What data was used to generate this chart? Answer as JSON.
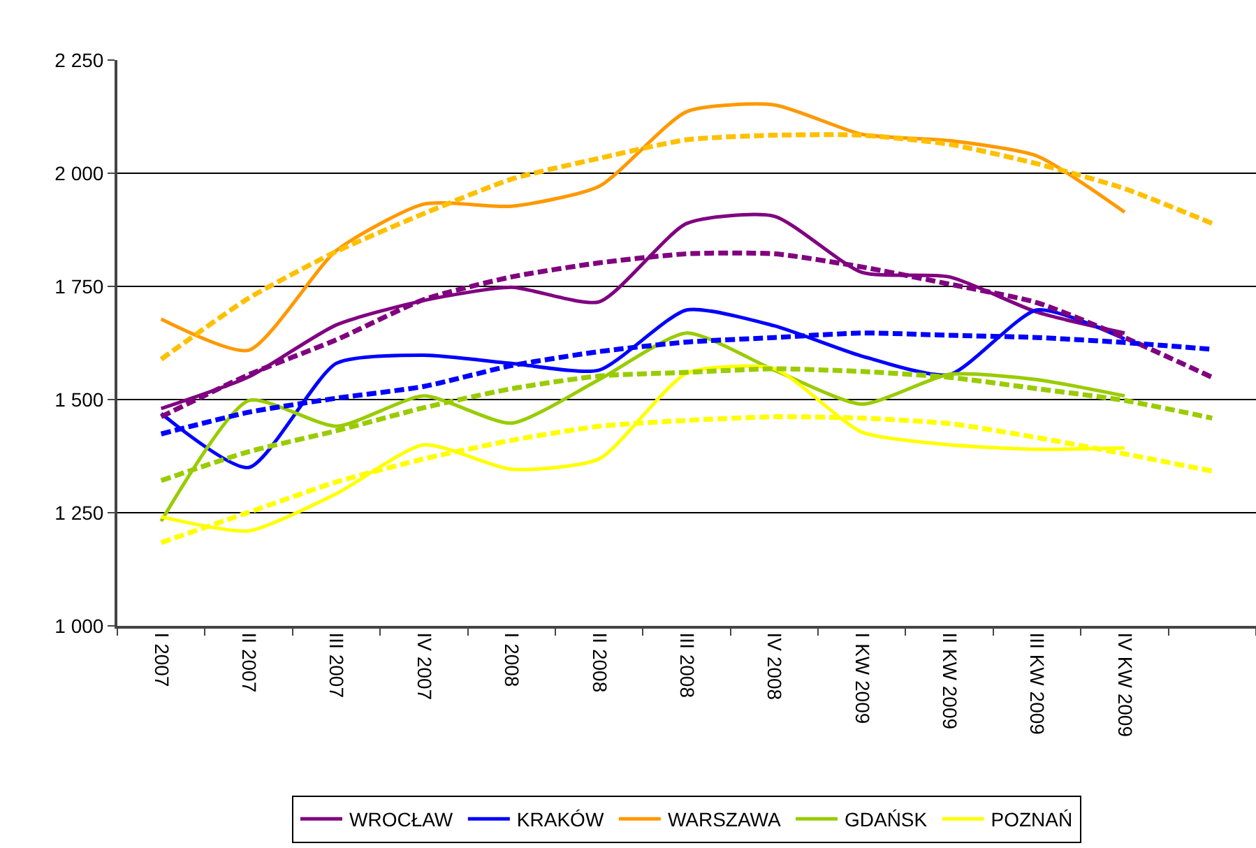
{
  "chart_data": {
    "type": "line",
    "categories": [
      "I 2007",
      "II 2007",
      "III 2007",
      "IV 2007",
      "I 2008",
      "II 2008",
      "III 2008",
      "IV 2008",
      "I KW 2009",
      "II KW 2009",
      "III KW 2009",
      "IV KW 2009",
      null
    ],
    "ylim": [
      1000,
      2250
    ],
    "yticks": [
      {
        "value": 1000,
        "label": "1 000"
      },
      {
        "value": 1250,
        "label": "1 250"
      },
      {
        "value": 1500,
        "label": "1 500"
      },
      {
        "value": 1750,
        "label": "1 750"
      },
      {
        "value": 2000,
        "label": "2 000"
      },
      {
        "value": 2250,
        "label": "2 250"
      }
    ],
    "grid": "y",
    "legend": "bottom",
    "marker": "none",
    "line_style": "solid",
    "series": [
      {
        "name": "WROCŁAW",
        "color": "#800080",
        "values": [
          1480,
          1550,
          1665,
          1719,
          1748,
          1716,
          1889,
          1905,
          1781,
          1771,
          1693,
          1647,
          null
        ]
      },
      {
        "name": "KRAKÓW",
        "color": "#0000ff",
        "values": [
          1469,
          1350,
          1580,
          1598,
          1580,
          1565,
          1698,
          1663,
          1596,
          1555,
          1698,
          1634,
          null
        ]
      },
      {
        "name": "WARSZAWA",
        "color": "#ff9900",
        "values": [
          1678,
          1609,
          1829,
          1932,
          1927,
          1971,
          2136,
          2151,
          2086,
          2072,
          2038,
          1914,
          null
        ]
      },
      {
        "name": "GDAŃSK",
        "color": "#99cc00",
        "values": [
          1231,
          1498,
          1441,
          1508,
          1448,
          1544,
          1647,
          1565,
          1490,
          1556,
          1544,
          1508,
          null
        ]
      },
      {
        "name": "POZNAŃ",
        "color": "#ffff00",
        "values": [
          1241,
          1210,
          1292,
          1400,
          1346,
          1369,
          1558,
          1568,
          1428,
          1400,
          1390,
          1393,
          null
        ]
      },
      {
        "color": "#800080",
        "line_style": "dashed",
        "values": [
          1462,
          1555,
          1632,
          1721,
          1771,
          1802,
          1822,
          1822,
          1793,
          1755,
          1714,
          1637,
          1549
        ]
      },
      {
        "color": "#0000ff",
        "line_style": "dashed",
        "values": [
          1424,
          1472,
          1503,
          1529,
          1575,
          1606,
          1627,
          1637,
          1647,
          1642,
          1637,
          1626,
          1611
        ]
      },
      {
        "color": "#ffc000",
        "line_style": "dashed",
        "values": [
          1589,
          1724,
          1827,
          1911,
          1987,
          2033,
          2074,
          2084,
          2084,
          2064,
          2021,
          1966,
          1889
        ]
      },
      {
        "color": "#99cc00",
        "line_style": "dashed",
        "values": [
          1321,
          1385,
          1431,
          1482,
          1524,
          1552,
          1560,
          1568,
          1562,
          1549,
          1524,
          1498,
          1459
        ]
      },
      {
        "color": "#ffff00",
        "line_style": "dashed",
        "values": [
          1184,
          1251,
          1318,
          1369,
          1410,
          1441,
          1454,
          1462,
          1459,
          1447,
          1416,
          1380,
          1342
        ]
      }
    ]
  }
}
